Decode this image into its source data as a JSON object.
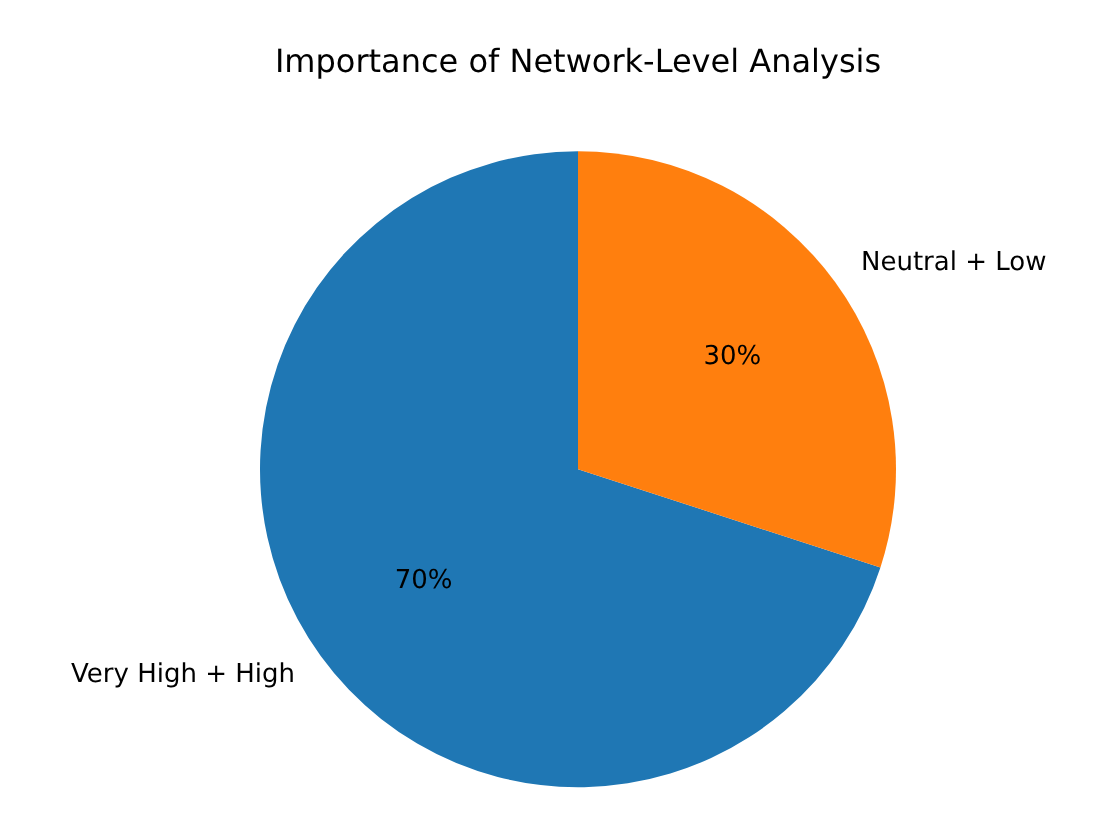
{
  "chart_data": {
    "type": "pie",
    "title": "Importance of Network-Level Analysis",
    "categories": [
      "Very High + High",
      "Neutral + Low"
    ],
    "values": [
      70,
      30
    ],
    "colors": [
      "#1f77b4",
      "#ff7f0e"
    ],
    "value_labels": [
      "70%",
      "30%"
    ],
    "legend": false
  }
}
